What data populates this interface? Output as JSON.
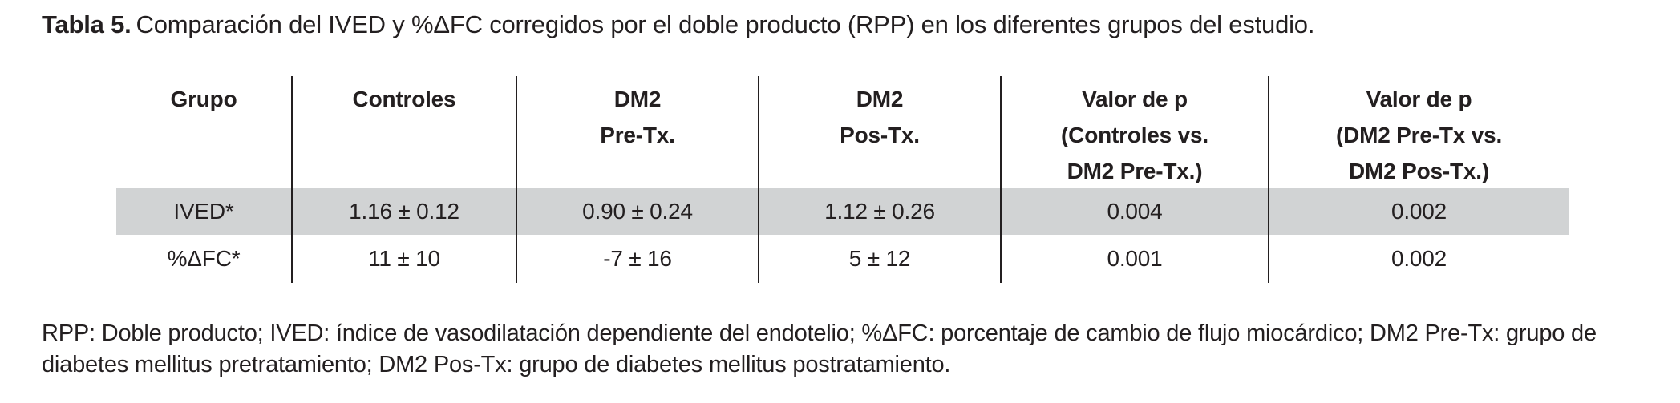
{
  "title": {
    "label": "Tabla 5.",
    "text": "Comparación del IVED y %ΔFC corregidos por el doble producto (RPP) en los diferentes grupos del estudio."
  },
  "table": {
    "columns": [
      {
        "lines": [
          "Grupo"
        ]
      },
      {
        "lines": [
          "Controles"
        ]
      },
      {
        "lines": [
          "DM2",
          "Pre-Tx."
        ]
      },
      {
        "lines": [
          "DM2",
          "Pos-Tx."
        ]
      },
      {
        "lines": [
          "Valor de p",
          "(Controles vs.",
          "DM2 Pre-Tx.)"
        ]
      },
      {
        "lines": [
          "Valor de p",
          "(DM2 Pre-Tx vs.",
          "DM2 Pos-Tx.)"
        ]
      }
    ],
    "rows": [
      {
        "label": "IVED*",
        "values": [
          "1.16 ± 0.12",
          "0.90 ± 0.24",
          "1.12 ± 0.26",
          "0.004",
          "0.002"
        ],
        "highlighted": true
      },
      {
        "label": "%ΔFC*",
        "values": [
          "11 ± 10",
          "-7 ± 16",
          "5 ± 12",
          "0.001",
          "0.002"
        ],
        "highlighted": false
      }
    ]
  },
  "footnote": {
    "text": "RPP: Doble producto; IVED: índice de vasodilatación dependiente del endotelio; %ΔFC: porcentaje de cambio de flujo miocárdico; DM2 Pre-Tx: grupo de diabetes mellitus pretratamiento; DM2 Pos-Tx: grupo de diabetes mellitus postratamiento."
  },
  "colors": {
    "highlight": "#d1d3d4",
    "ink": "#231f20"
  }
}
